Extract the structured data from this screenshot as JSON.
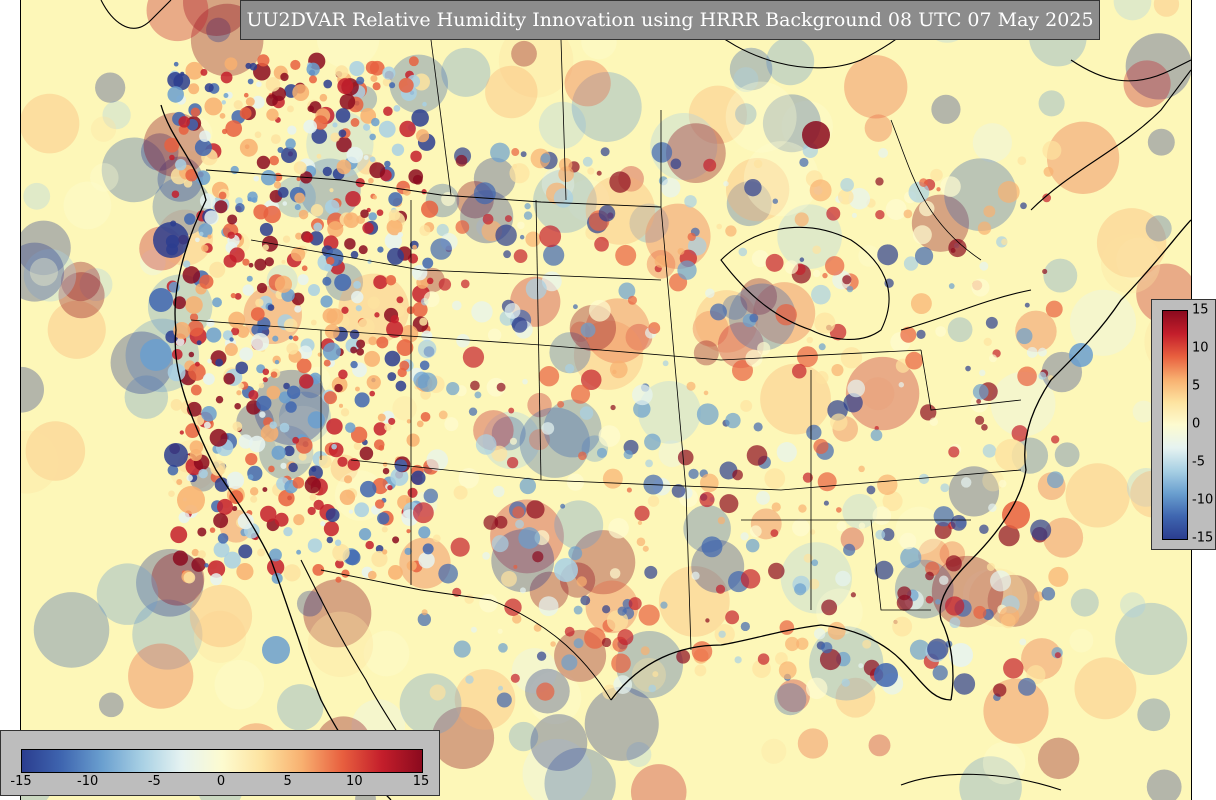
{
  "title": "UU2DVAR Relative Humidity Innovation using HRRR Background 08 UTC 07 May 2025",
  "colorbar": {
    "min": -15,
    "max": 15,
    "levels": 31,
    "colors_low_to_high": [
      "#2b3d8f",
      "#3f66b0",
      "#6a9fcf",
      "#a8d0e4",
      "#e6f3f1",
      "#fdfbd0",
      "#fde3a0",
      "#f8b070",
      "#e8603f",
      "#c41e2b",
      "#8b0a1e"
    ],
    "horizontal_ticks": [
      "-15",
      "-10",
      "-5",
      "0",
      "5",
      "10",
      "15"
    ],
    "vertical_ticks": [
      "15",
      "10",
      "5",
      "0",
      "-5",
      "-10",
      "-15"
    ]
  },
  "map": {
    "projection": "lambert-conformal",
    "region": "CONUS and surrounding North America",
    "background_color": "#fdf7b8"
  }
}
